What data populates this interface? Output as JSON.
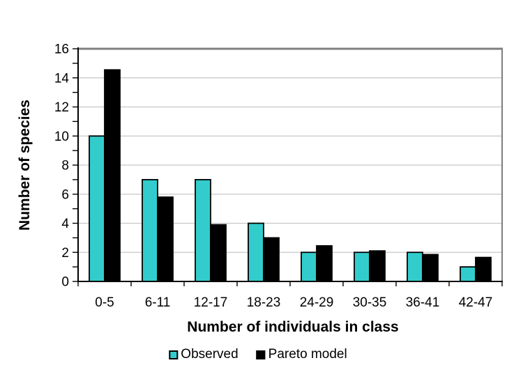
{
  "figure": {
    "background": "#FFFFFF"
  },
  "chart_data": {
    "type": "bar",
    "title": "",
    "xlabel": "Number of individuals in class",
    "ylabel": "Number of species",
    "categories": [
      "0-5",
      "6-11",
      "12-17",
      "18-23",
      "24-29",
      "30-35",
      "36-41",
      "42-47"
    ],
    "series": [
      {
        "name": "Observed",
        "color": "#33CCCC",
        "values": [
          10,
          7,
          7,
          4,
          2,
          2,
          2,
          1
        ]
      },
      {
        "name": "Pareto model",
        "color": "#000000",
        "values": [
          14.55,
          5.8,
          3.9,
          3,
          2.45,
          2.1,
          1.85,
          1.65
        ]
      }
    ],
    "ylim": [
      0,
      16
    ],
    "ytick_step": 2,
    "yticks_labeled": [
      0,
      2,
      4,
      6,
      8,
      10,
      12,
      14,
      16
    ],
    "minor_tick_step": 1,
    "grid": "horizontal-major",
    "legend_position": "bottom-center",
    "style": {
      "gridline_color": "#C6C6C6",
      "border_color": "#7F7F7F",
      "axis_color": "#000000",
      "bar_outline_color": "#000000"
    }
  }
}
